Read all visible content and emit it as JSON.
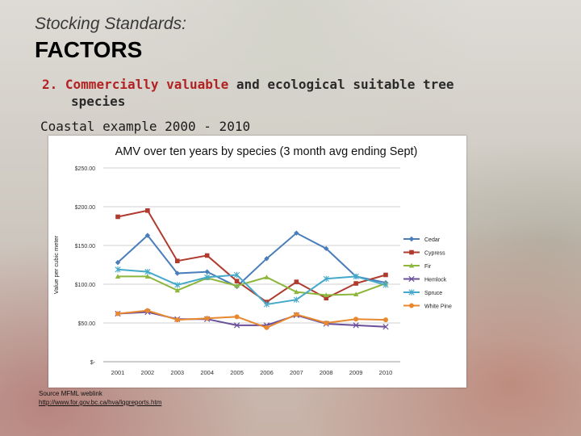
{
  "slide": {
    "subtitle": "Stocking Standards:",
    "title": "FACTORS",
    "point_number": "2.",
    "point_highlight": "Commercially valuable",
    "point_rest_line1": " and ecological suitable tree",
    "point_rest_line2": "species",
    "example": "Coastal example 2000 - 2010",
    "source_label": "Source MFML weblink",
    "source_link": "http://www.for.gov.bc.ca/hva/lqgreports.htm"
  },
  "colors": {
    "Cedar": "#4a7ebb",
    "Cypress": "#b03a2e",
    "Fir": "#8db63c",
    "Hemlock": "#6a4f9b",
    "Spruce": "#45a9c9",
    "White Pine": "#e8882f",
    "highlight": "#b22222"
  },
  "chart_data": {
    "type": "line",
    "title": "AMV over ten years by species (3 month avg ending Sept)",
    "xlabel": "",
    "ylabel": "Value per cubic meter",
    "x": [
      "2001",
      "2002",
      "2003",
      "2004",
      "2005",
      "2006",
      "2007",
      "2008",
      "2009",
      "2010"
    ],
    "ylim": [
      0,
      250
    ],
    "yticks": [
      "$-",
      "$50.00",
      "$100.00",
      "$150.00",
      "$200.00",
      "$250.00"
    ],
    "ytick_values": [
      0,
      50,
      100,
      150,
      200,
      250
    ],
    "grid": true,
    "legend": "right",
    "series": [
      {
        "name": "Cedar",
        "marker": "diamond",
        "values": [
          128,
          163,
          114,
          116,
          97,
          133,
          166,
          146,
          110,
          102
        ]
      },
      {
        "name": "Cypress",
        "marker": "square",
        "values": [
          187,
          195,
          130,
          137,
          104,
          77,
          103,
          82,
          101,
          112
        ]
      },
      {
        "name": "Fir",
        "marker": "triangle",
        "values": [
          110,
          110,
          92,
          108,
          98,
          109,
          90,
          86,
          87,
          101
        ]
      },
      {
        "name": "Hemlock",
        "marker": "x",
        "values": [
          62,
          64,
          55,
          55,
          47,
          47,
          60,
          49,
          47,
          45
        ]
      },
      {
        "name": "Spruce",
        "marker": "star",
        "values": [
          119,
          116,
          99,
          109,
          112,
          74,
          80,
          107,
          110,
          99
        ]
      },
      {
        "name": "White Pine",
        "marker": "circle",
        "values": [
          62,
          66,
          54,
          56,
          58,
          44,
          61,
          50,
          55,
          54
        ]
      }
    ]
  }
}
